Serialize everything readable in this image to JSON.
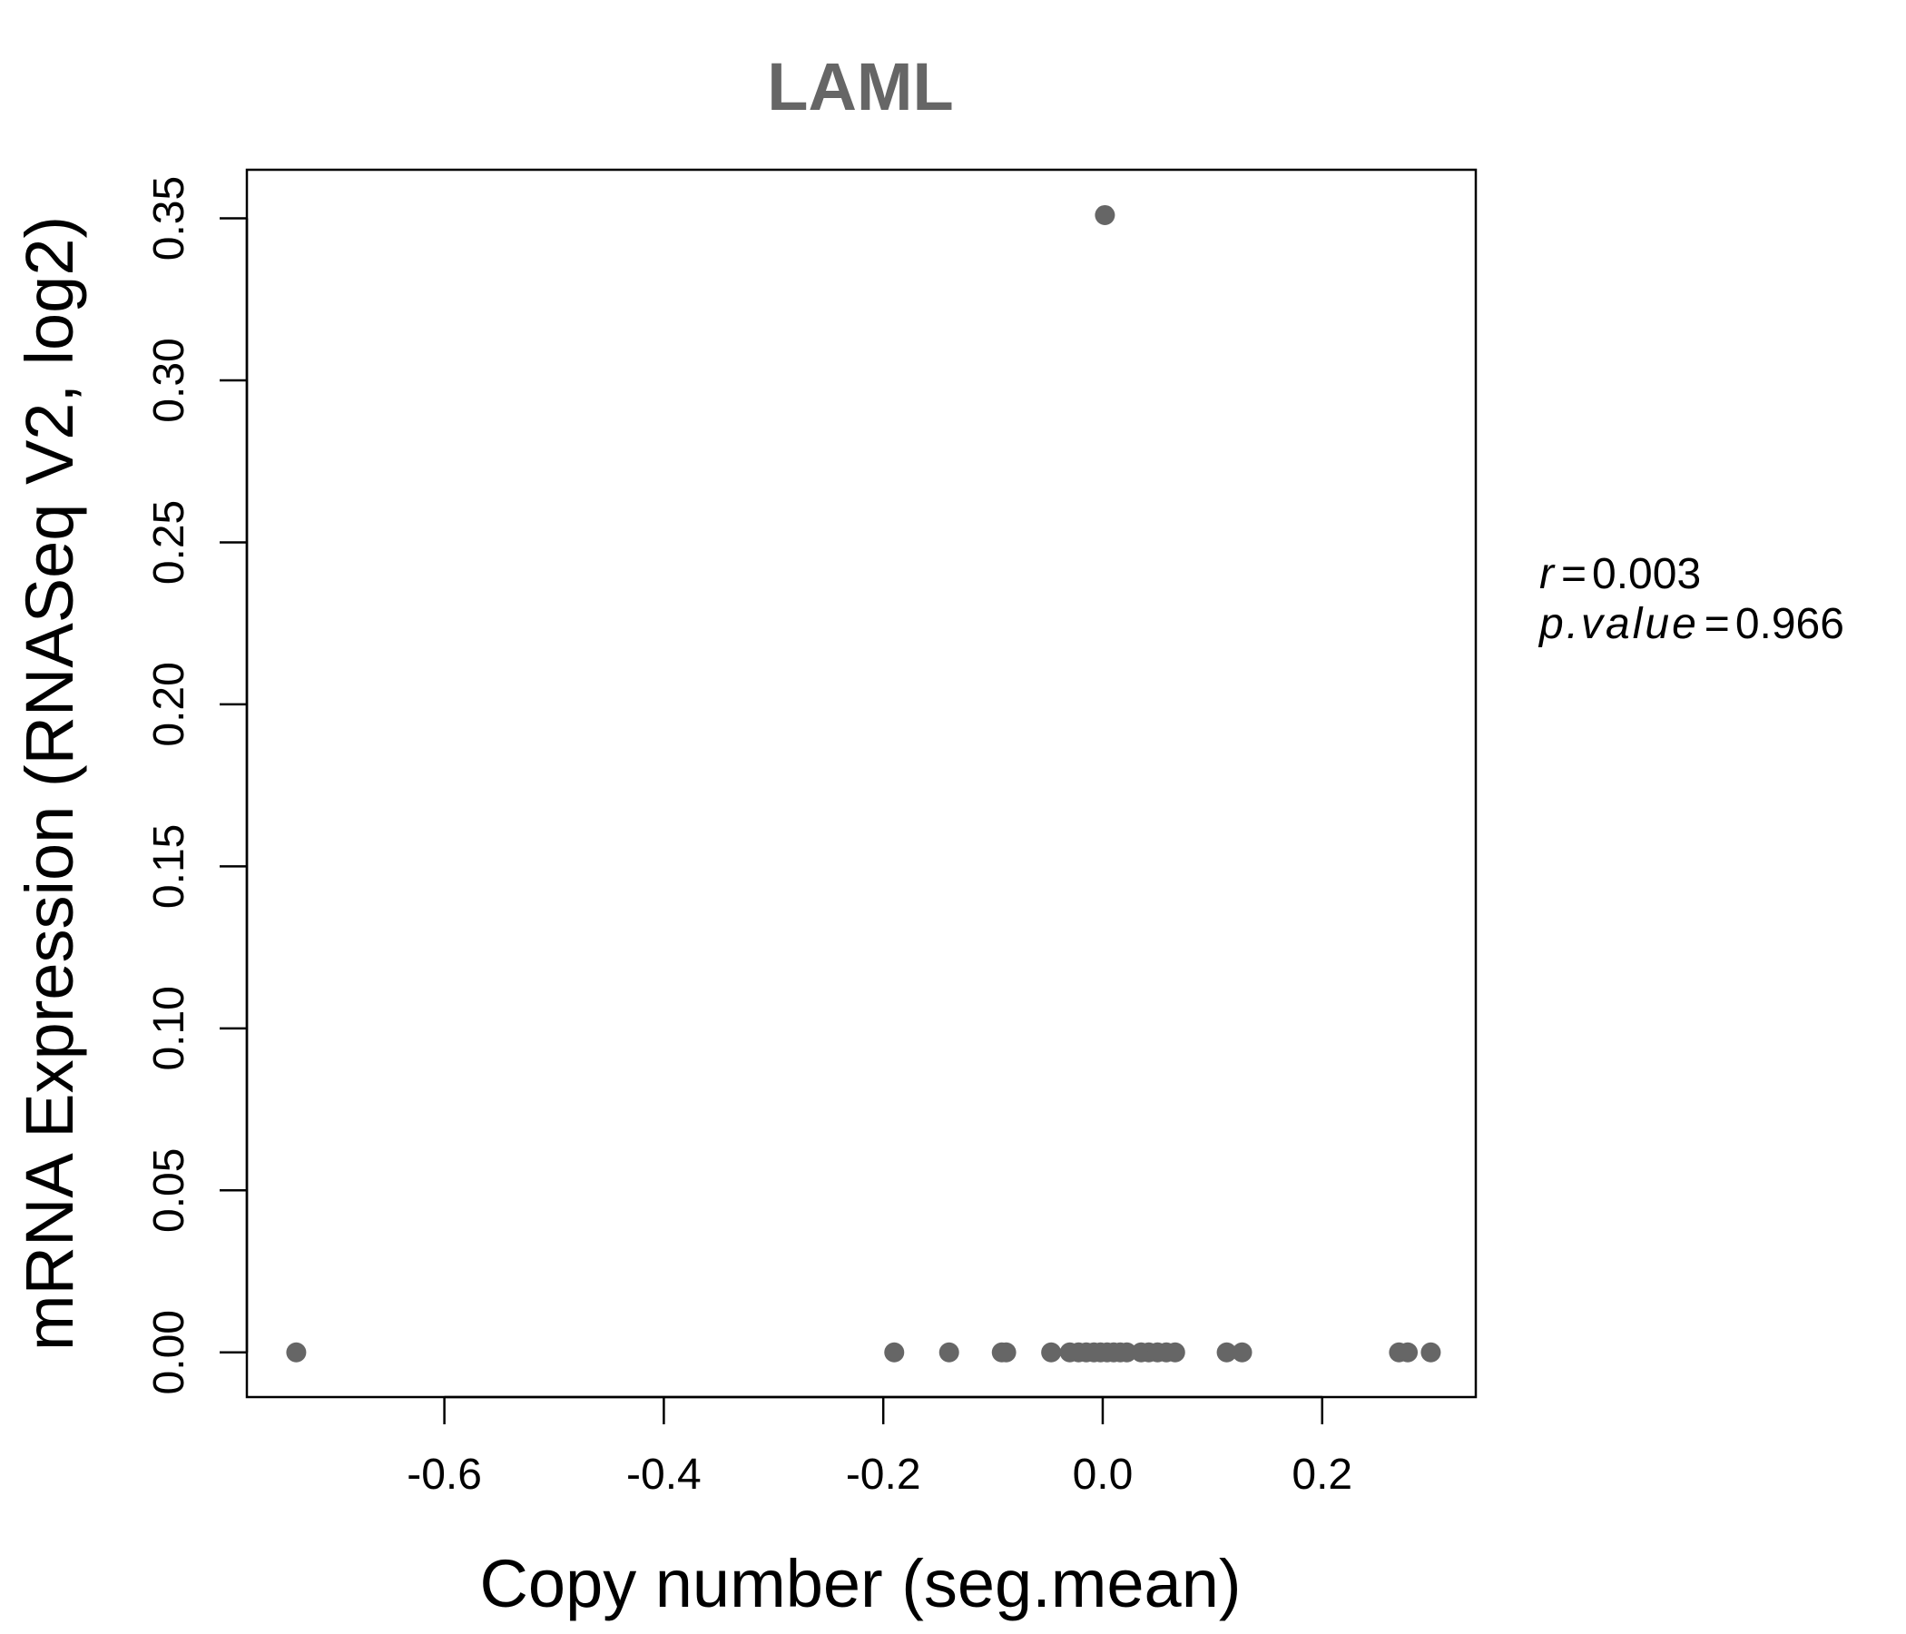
{
  "chart_data": {
    "type": "scatter",
    "title": "LAML",
    "xlabel": "Copy number (seg.mean)",
    "ylabel": "mRNA Expression (RNASeq V2, log2)",
    "xlim": [
      -0.78,
      0.34
    ],
    "ylim": [
      -0.0138,
      0.365
    ],
    "xticks": [
      -0.6,
      -0.4,
      -0.2,
      0.0,
      0.2
    ],
    "xtick_labels": [
      "-0.6",
      "-0.4",
      "-0.2",
      "0.0",
      "0.2"
    ],
    "yticks": [
      0.0,
      0.05,
      0.1,
      0.15,
      0.2,
      0.25,
      0.3,
      0.35
    ],
    "ytick_labels": [
      "0.00",
      "0.05",
      "0.10",
      "0.15",
      "0.20",
      "0.25",
      "0.30",
      "0.35"
    ],
    "grid": false,
    "marker_color": "#666666",
    "points": [
      {
        "x": -0.735,
        "y": 0.0
      },
      {
        "x": -0.19,
        "y": 0.0
      },
      {
        "x": -0.14,
        "y": 0.0
      },
      {
        "x": -0.092,
        "y": 0.0
      },
      {
        "x": -0.088,
        "y": 0.0
      },
      {
        "x": -0.047,
        "y": 0.0
      },
      {
        "x": -0.03,
        "y": 0.0
      },
      {
        "x": -0.022,
        "y": 0.0
      },
      {
        "x": -0.015,
        "y": 0.0
      },
      {
        "x": -0.008,
        "y": 0.0
      },
      {
        "x": -0.002,
        "y": 0.0
      },
      {
        "x": 0.002,
        "y": 0.351
      },
      {
        "x": 0.004,
        "y": 0.0
      },
      {
        "x": 0.01,
        "y": 0.0
      },
      {
        "x": 0.016,
        "y": 0.0
      },
      {
        "x": 0.022,
        "y": 0.0
      },
      {
        "x": 0.035,
        "y": 0.0
      },
      {
        "x": 0.042,
        "y": 0.0
      },
      {
        "x": 0.05,
        "y": 0.0
      },
      {
        "x": 0.058,
        "y": 0.0
      },
      {
        "x": 0.066,
        "y": 0.0
      },
      {
        "x": 0.113,
        "y": 0.0
      },
      {
        "x": 0.127,
        "y": 0.0
      },
      {
        "x": 0.27,
        "y": 0.0
      },
      {
        "x": 0.278,
        "y": 0.0
      },
      {
        "x": 0.299,
        "y": 0.0
      }
    ],
    "annotations": {
      "r_label": "r",
      "r_eq": "=",
      "r_value": "0.003",
      "p_label": "p.value",
      "p_eq": "=",
      "p_value": "0.966"
    }
  }
}
